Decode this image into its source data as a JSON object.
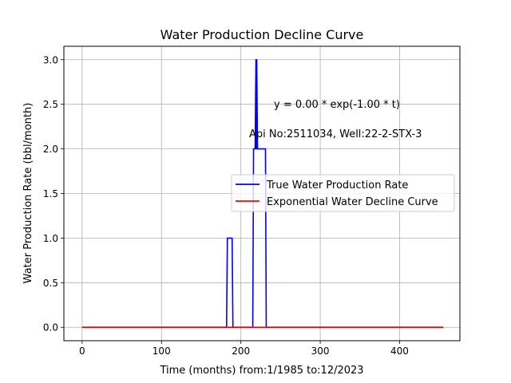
{
  "chart_data": {
    "type": "line",
    "title": "Water Production Decline Curve",
    "xlabel": "Time (months) from:1/1985 to:12/2023",
    "ylabel": "Water Production Rate (bbl/month)",
    "xlim": [
      -23,
      476
    ],
    "ylim": [
      -0.15,
      3.15
    ],
    "x_ticks": [
      0,
      100,
      200,
      300,
      400
    ],
    "y_ticks": [
      0.0,
      0.5,
      1.0,
      1.5,
      2.0,
      2.5,
      3.0
    ],
    "x_tick_labels": [
      "0",
      "100",
      "200",
      "300",
      "400"
    ],
    "y_tick_labels": [
      "0.0",
      "0.5",
      "1.0",
      "1.5",
      "2.0",
      "2.5",
      "3.0"
    ],
    "grid": true,
    "legend_position": "center-right",
    "annotations": [
      {
        "text": "y = 0.00 * exp(-1.00 * t)",
        "x": 243,
        "y": 2.43
      },
      {
        "text": "Api No:2511034, Well:22-2-STX-3",
        "x": 211,
        "y": 2.11
      }
    ],
    "series": [
      {
        "name": "True Water Production Rate",
        "color": "#0000ff",
        "x": [
          0,
          182,
          183,
          189,
          190,
          215,
          216,
          218,
          219,
          219.5,
          220,
          221,
          222,
          230,
          231,
          232,
          455
        ],
        "y": [
          0,
          0,
          1,
          1,
          0,
          0,
          2,
          2,
          3,
          2,
          3,
          2,
          2,
          2,
          2,
          0,
          0
        ]
      },
      {
        "name": "Exponential Water Decline Curve",
        "color": "#ff0000",
        "x": [
          0,
          455
        ],
        "y": [
          0,
          0
        ]
      }
    ]
  }
}
